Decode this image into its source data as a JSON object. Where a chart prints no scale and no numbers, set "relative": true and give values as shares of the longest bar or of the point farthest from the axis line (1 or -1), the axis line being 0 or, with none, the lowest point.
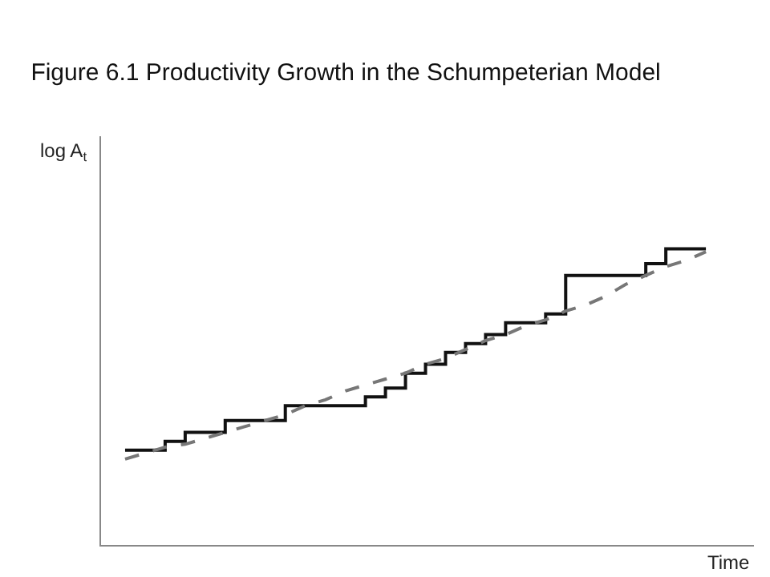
{
  "chart_data": {
    "type": "step",
    "title": "Figure 6.1 Productivity Growth in the Schumpeterian Model",
    "xlabel": "Time",
    "ylabel": "log A$_{t}$",
    "relative": true,
    "categories": [
      null,
      null,
      null,
      null,
      null,
      null,
      null,
      null,
      null,
      null,
      null,
      null,
      null,
      null,
      null,
      null,
      null,
      null,
      null,
      null,
      null,
      null,
      null,
      null,
      null,
      null,
      null,
      null,
      null,
      null
    ],
    "series": [
      {
        "color": "#111111",
        "line_style": "solid",
        "values": [
          0.32,
          0.32,
          0.35,
          0.38,
          0.38,
          0.42,
          0.42,
          0.42,
          0.47,
          0.47,
          0.47,
          0.47,
          0.5,
          0.53,
          0.58,
          0.61,
          0.65,
          0.68,
          0.71,
          0.75,
          0.75,
          0.78,
          0.91,
          0.91,
          0.91,
          0.91,
          0.95,
          1.0,
          1.0,
          1.0
        ]
      },
      {
        "type": "line",
        "color": "#777777",
        "line_style": "dashed",
        "values": [
          0.29,
          0.31,
          0.33,
          0.34,
          0.36,
          0.38,
          0.4,
          0.42,
          0.44,
          0.47,
          0.49,
          0.52,
          0.54,
          0.56,
          0.58,
          0.61,
          0.63,
          0.66,
          0.69,
          0.71,
          0.74,
          0.76,
          0.79,
          0.81,
          0.84,
          0.88,
          0.91,
          0.94,
          0.96,
          0.99
        ]
      }
    ]
  }
}
